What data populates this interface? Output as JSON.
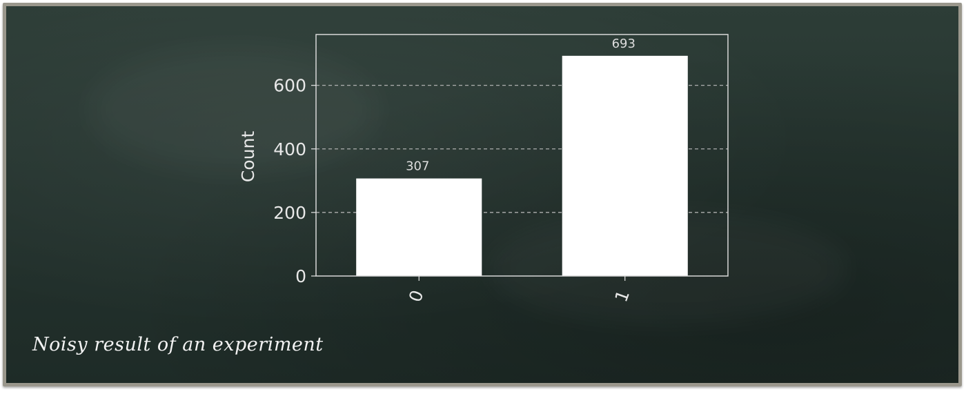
{
  "caption": "Noisy result of an experiment",
  "colors": {
    "board": "#25342f",
    "frame": "#9a978c",
    "bar": "#ffffff",
    "ink": "#e8e8e8",
    "grid": "#bdbdbd"
  },
  "chart_data": {
    "type": "bar",
    "categories": [
      "0",
      "1"
    ],
    "values": [
      307,
      693
    ],
    "data_labels": [
      "307",
      "693"
    ],
    "ylabel": "Count",
    "yticks": [
      "0",
      "200",
      "400",
      "600"
    ],
    "ylim": [
      0,
      760
    ],
    "grid": "dashed horizontal lines",
    "xtick_rotation": "rotated"
  }
}
